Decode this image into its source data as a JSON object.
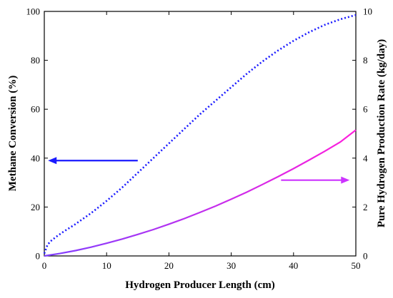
{
  "chart_data": {
    "type": "line",
    "title": "",
    "xlabel": "Hydrogen Producer Length (cm)",
    "ylabel_left": "Methane Conversion (%)",
    "ylabel_right": "Pure Hydrogen Production Rate (kg/day)",
    "xlim": [
      0,
      50
    ],
    "ylim_left": [
      0,
      100
    ],
    "ylim_right": [
      0,
      10
    ],
    "x_ticks": [
      "0",
      "10",
      "20",
      "30",
      "40",
      "50"
    ],
    "y_left_ticks": [
      "0",
      "20",
      "40",
      "60",
      "80",
      "100"
    ],
    "y_right_ticks": [
      "0",
      "2",
      "4",
      "6",
      "8",
      "10"
    ],
    "grid": false,
    "series": [
      {
        "axis": "left",
        "style": "dotted",
        "color": "#1a1aff",
        "x": [
          0,
          0.5,
          1,
          2,
          3,
          5,
          7.5,
          10,
          12.5,
          15,
          17.5,
          20,
          22.5,
          25,
          27.5,
          30,
          32.5,
          35,
          37.5,
          40,
          42.5,
          45,
          47.5,
          50
        ],
        "y": [
          1,
          4.5,
          6,
          8,
          9.8,
          13,
          17.5,
          22.5,
          28,
          34,
          40,
          46,
          52,
          58,
          63.5,
          69,
          74.5,
          79.5,
          84,
          88,
          91.5,
          94.5,
          96.8,
          98.5
        ]
      },
      {
        "axis": "right",
        "style": "solid",
        "color": "#9933ff",
        "x": [
          0,
          2.5,
          5,
          7.5,
          10,
          12.5,
          15,
          17.5,
          20,
          22.5,
          25,
          27.5,
          30,
          32.5,
          35,
          37.5,
          40,
          42.5,
          45,
          47.5,
          50
        ],
        "y": [
          0,
          0.1,
          0.22,
          0.36,
          0.52,
          0.69,
          0.88,
          1.08,
          1.3,
          1.53,
          1.78,
          2.04,
          2.32,
          2.61,
          2.92,
          3.24,
          3.57,
          3.92,
          4.28,
          4.66,
          5.15
        ]
      }
    ],
    "annotations": [
      {
        "type": "arrow",
        "direction": "left",
        "color": "#1a1aff",
        "points_to": "left-axis",
        "x_from": 15,
        "x_to": 0.6,
        "y": 39
      },
      {
        "type": "arrow",
        "direction": "right",
        "color": "#cc33ff",
        "points_to": "right-axis",
        "x_from": 38,
        "x_to": 49,
        "y": 31
      }
    ]
  }
}
